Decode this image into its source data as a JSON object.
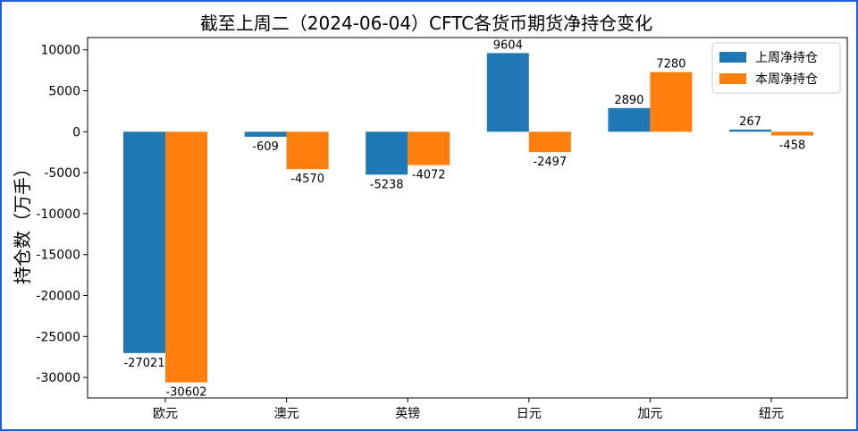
{
  "chart_data": {
    "type": "bar",
    "title": "截至上周二（2024-06-04）CFTC各货币期货净持仓变化",
    "xlabel": "",
    "ylabel": "持仓数（万手）",
    "categories": [
      "欧元",
      "澳元",
      "英镑",
      "日元",
      "加元",
      "纽元"
    ],
    "series": [
      {
        "name": "上周净持仓",
        "color": "#1f77b4",
        "values": [
          -27021,
          -609,
          -5238,
          9604,
          2890,
          267
        ]
      },
      {
        "name": "本周净持仓",
        "color": "#ff7f0e",
        "values": [
          -30602,
          -4570,
          -4072,
          -2497,
          7280,
          -458
        ]
      }
    ],
    "ylim": [
      -32500,
      11500
    ],
    "yticks": [
      10000,
      5000,
      0,
      -5000,
      -10000,
      -15000,
      -20000,
      -25000,
      -30000
    ],
    "legend": "top-right",
    "grid": false
  }
}
